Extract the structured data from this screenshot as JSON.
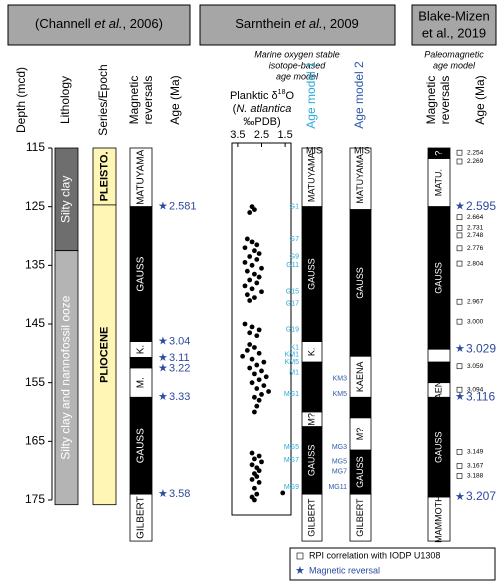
{
  "headers": [
    {
      "pre": "(Channell ",
      "em": "et al.",
      "post": ", 2006)"
    },
    {
      "pre": "Sarnthein ",
      "em": "et al.",
      "post": ", 2009"
    },
    {
      "lines": [
        "Blake-Mizen",
        "et al., 2019"
      ]
    }
  ],
  "subtitles": {
    "middle": [
      "Marine oxygen stable",
      "isotope-based",
      "age model"
    ],
    "right": [
      "Paleomagnetic",
      "age model"
    ]
  },
  "depth_axis": {
    "label": "Depth (mcd)",
    "lim": [
      115,
      175
    ],
    "ticks": [
      115,
      125,
      135,
      145,
      155,
      165,
      175
    ]
  },
  "lithology": {
    "label": "Lithology",
    "segments": [
      {
        "from": 115,
        "to": 132.5,
        "color": "#6e6e6e",
        "label": "Silty clay"
      },
      {
        "from": 132.5,
        "to": 175.8,
        "color": "#b4b4b4",
        "label": "Silty clay and nannofossil ooze"
      }
    ]
  },
  "epoch": {
    "label": "Series/Epoch",
    "segments": [
      {
        "from": 115,
        "to": 124.7,
        "color": "#fff5b4",
        "label": "PLEISTO."
      },
      {
        "from": 124.7,
        "to": 175.8,
        "color": "#fff5b4",
        "label": "PLIOCENE"
      }
    ]
  },
  "channell": {
    "label": [
      "Magnetic",
      "reversals"
    ],
    "age_label": "Age (Ma)",
    "segments": [
      {
        "from": 115,
        "to": 125,
        "color": "white",
        "label": "MATUYAMA"
      },
      {
        "from": 125,
        "to": 148,
        "color": "black",
        "label": "GAUSS"
      },
      {
        "from": 148,
        "to": 150.7,
        "color": "white",
        "label": "K."
      },
      {
        "from": 150.7,
        "to": 152.5,
        "color": "black"
      },
      {
        "from": 152.5,
        "to": 157.5,
        "color": "white",
        "label": "M."
      },
      {
        "from": 157.5,
        "to": 174,
        "color": "black",
        "label": "GAUSS"
      },
      {
        "from": 174,
        "to": 182,
        "color": "white",
        "label": "GILBERT"
      }
    ],
    "reversals": [
      {
        "depth": 125,
        "age": 2.581
      },
      {
        "depth": 148,
        "age": 3.04
      },
      {
        "depth": 150.8,
        "age": 3.11
      },
      {
        "depth": 152.6,
        "age": 3.22
      },
      {
        "depth": 157.5,
        "age": 3.33
      },
      {
        "depth": 174,
        "age": 3.58
      }
    ]
  },
  "isotope": {
    "title": [
      [
        "Planktic δ",
        "18",
        "O"
      ],
      [
        "(",
        "N. atlantica"
      ],
      [
        "‰PDB)"
      ]
    ],
    "xlim": [
      3.75,
      1.25
    ],
    "xticks": [
      3.5,
      2.5,
      1.5
    ],
    "x": [
      2.9,
      2.8,
      3.0,
      3.1,
      2.9,
      2.7,
      3.2,
      2.8,
      2.6,
      3.0,
      2.7,
      3.2,
      2.9,
      2.5,
      3.1,
      2.8,
      2.6,
      3.0,
      2.7,
      3.2,
      2.9,
      2.5,
      3.1,
      2.8,
      3.0,
      3.2,
      2.9,
      2.6,
      3.0,
      2.7,
      3.0,
      2.8,
      3.1,
      2.6,
      3.3,
      2.9,
      2.4,
      2.7,
      3.0,
      2.5,
      2.8,
      2.3,
      2.6,
      2.9,
      2.4,
      2.7,
      2.2,
      2.5,
      2.8,
      2.6,
      2.7,
      2.8,
      2.9,
      2.6,
      2.8,
      2.5,
      2.9,
      2.7,
      2.6,
      2.8,
      2.7,
      2.9,
      2.6,
      2.8,
      1.6,
      2.7,
      2.9,
      2.8
    ],
    "depth": [
      125,
      125.5,
      126,
      130.5,
      131,
      131.5,
      132,
      132.5,
      133,
      133.5,
      134,
      134.5,
      135,
      135.5,
      136,
      136.5,
      137,
      137.5,
      138,
      138.5,
      139,
      139.5,
      140,
      140.5,
      141,
      145,
      145.5,
      146,
      146.5,
      147,
      148.5,
      149,
      149.5,
      150,
      150.5,
      151,
      151.5,
      152,
      152.5,
      153,
      153.5,
      154,
      154.5,
      155,
      155.5,
      156,
      156.5,
      157,
      157.5,
      158,
      159,
      160,
      167,
      167.5,
      168,
      168.5,
      169,
      169.5,
      170,
      170.5,
      171,
      171.5,
      172,
      173,
      173.8,
      174,
      174.5,
      175
    ]
  },
  "model1": {
    "label": "Age model 1",
    "mis": "MIS",
    "segments": [
      {
        "from": 115,
        "to": 125,
        "color": "white",
        "label": "MATUYAMA"
      },
      {
        "from": 125,
        "to": 148,
        "color": "black",
        "label": "GAUSS"
      },
      {
        "from": 148,
        "to": 151.5,
        "color": "white",
        "label": "K."
      },
      {
        "from": 151.5,
        "to": 160,
        "color": "black"
      },
      {
        "from": 160,
        "to": 162.5,
        "color": "white",
        "label": "M?"
      },
      {
        "from": 162.5,
        "to": 174,
        "color": "black",
        "label": "GAUSS"
      },
      {
        "from": 174,
        "to": 182,
        "color": "white",
        "label": "GILBERT"
      }
    ],
    "events": [
      [
        "G1",
        125
      ],
      [
        "G7",
        130.5
      ],
      [
        "G9",
        133.5
      ],
      [
        "G11",
        135
      ],
      [
        "G15",
        139.5
      ],
      [
        "G17",
        141.5
      ],
      [
        "G19",
        146
      ],
      [
        "K1",
        149
      ],
      [
        "KM1",
        150.2
      ],
      [
        "KM5",
        151.5
      ],
      [
        "M1",
        153.3
      ],
      [
        "MG1",
        157
      ],
      [
        "MG5",
        166
      ],
      [
        "MG7",
        168.2
      ],
      [
        "MG9",
        172.8
      ]
    ]
  },
  "model2": {
    "label": "Age model 2",
    "mis": "MIS",
    "segments": [
      {
        "from": 115,
        "to": 125.5,
        "color": "white",
        "label": "MATUYAMA"
      },
      {
        "from": 125.5,
        "to": 150.5,
        "color": "black",
        "label": "GAUSS"
      },
      {
        "from": 150.5,
        "to": 157.5,
        "color": "white",
        "label": "KAENA"
      },
      {
        "from": 157.5,
        "to": 161,
        "color": "black"
      },
      {
        "from": 161,
        "to": 166.5,
        "color": "white",
        "label": "M?"
      },
      {
        "from": 166.5,
        "to": 174,
        "color": "black",
        "label": "GAUSS"
      },
      {
        "from": 174,
        "to": 182,
        "color": "white",
        "label": "GILBERT"
      }
    ],
    "events": [
      [
        "KM3",
        154.3
      ],
      [
        "KM5",
        157
      ],
      [
        "MG3",
        166
      ],
      [
        "MG5",
        168.5
      ],
      [
        "MG7",
        170.2
      ],
      [
        "MG11",
        172.8
      ]
    ]
  },
  "blake": {
    "label": [
      "Magnetic",
      "reversals"
    ],
    "age_label": "Age (Ma)",
    "segments": [
      {
        "from": 115,
        "to": 116.8,
        "color": "black",
        "label": "?"
      },
      {
        "from": 116.8,
        "to": 125,
        "color": "white",
        "label": "MATU."
      },
      {
        "from": 125,
        "to": 149.3,
        "color": "black",
        "label": "GAUSS"
      },
      {
        "from": 149.3,
        "to": 151.5,
        "color": "white"
      },
      {
        "from": 151.5,
        "to": 155,
        "color": "black"
      },
      {
        "from": 155,
        "to": 157.5,
        "color": "white",
        "label": "KAENA"
      },
      {
        "from": 157.5,
        "to": 174.5,
        "color": "black",
        "label": "GAUSS"
      },
      {
        "from": 174.5,
        "to": 182,
        "color": "white",
        "label": "MAMMOTH"
      }
    ],
    "reversals": [
      {
        "depth": 125,
        "age": 2.595
      },
      {
        "depth": 149.3,
        "age": 3.029
      },
      {
        "depth": 157.5,
        "age": 3.116
      },
      {
        "depth": 174.5,
        "age": 3.207
      }
    ],
    "rpi": [
      {
        "depth": 115.8,
        "age": 2.254
      },
      {
        "depth": 117.3,
        "age": 2.269
      },
      {
        "depth": 126.8,
        "age": 2.664
      },
      {
        "depth": 128.6,
        "age": 2.731
      },
      {
        "depth": 129.9,
        "age": 2.748
      },
      {
        "depth": 132.1,
        "age": 2.776
      },
      {
        "depth": 134.7,
        "age": 2.804
      },
      {
        "depth": 141.2,
        "age": 2.967
      },
      {
        "depth": {
          "value": 144.6
        },
        "age": {
          "value": 3,
          "label": "3.000"
        }
      },
      {
        "depth": 152.2,
        "age": 3.059
      },
      {
        "depth": 156.2,
        "age": 3.094
      },
      {
        "depth": 166.8,
        "age": 3.149
      },
      {
        "depth": 169.2,
        "age": 3.167
      },
      {
        "depth": 170.9,
        "age": 3.188
      }
    ]
  },
  "legend": [
    "RPI correlation with IODP U1308",
    "Magnetic reversal"
  ]
}
